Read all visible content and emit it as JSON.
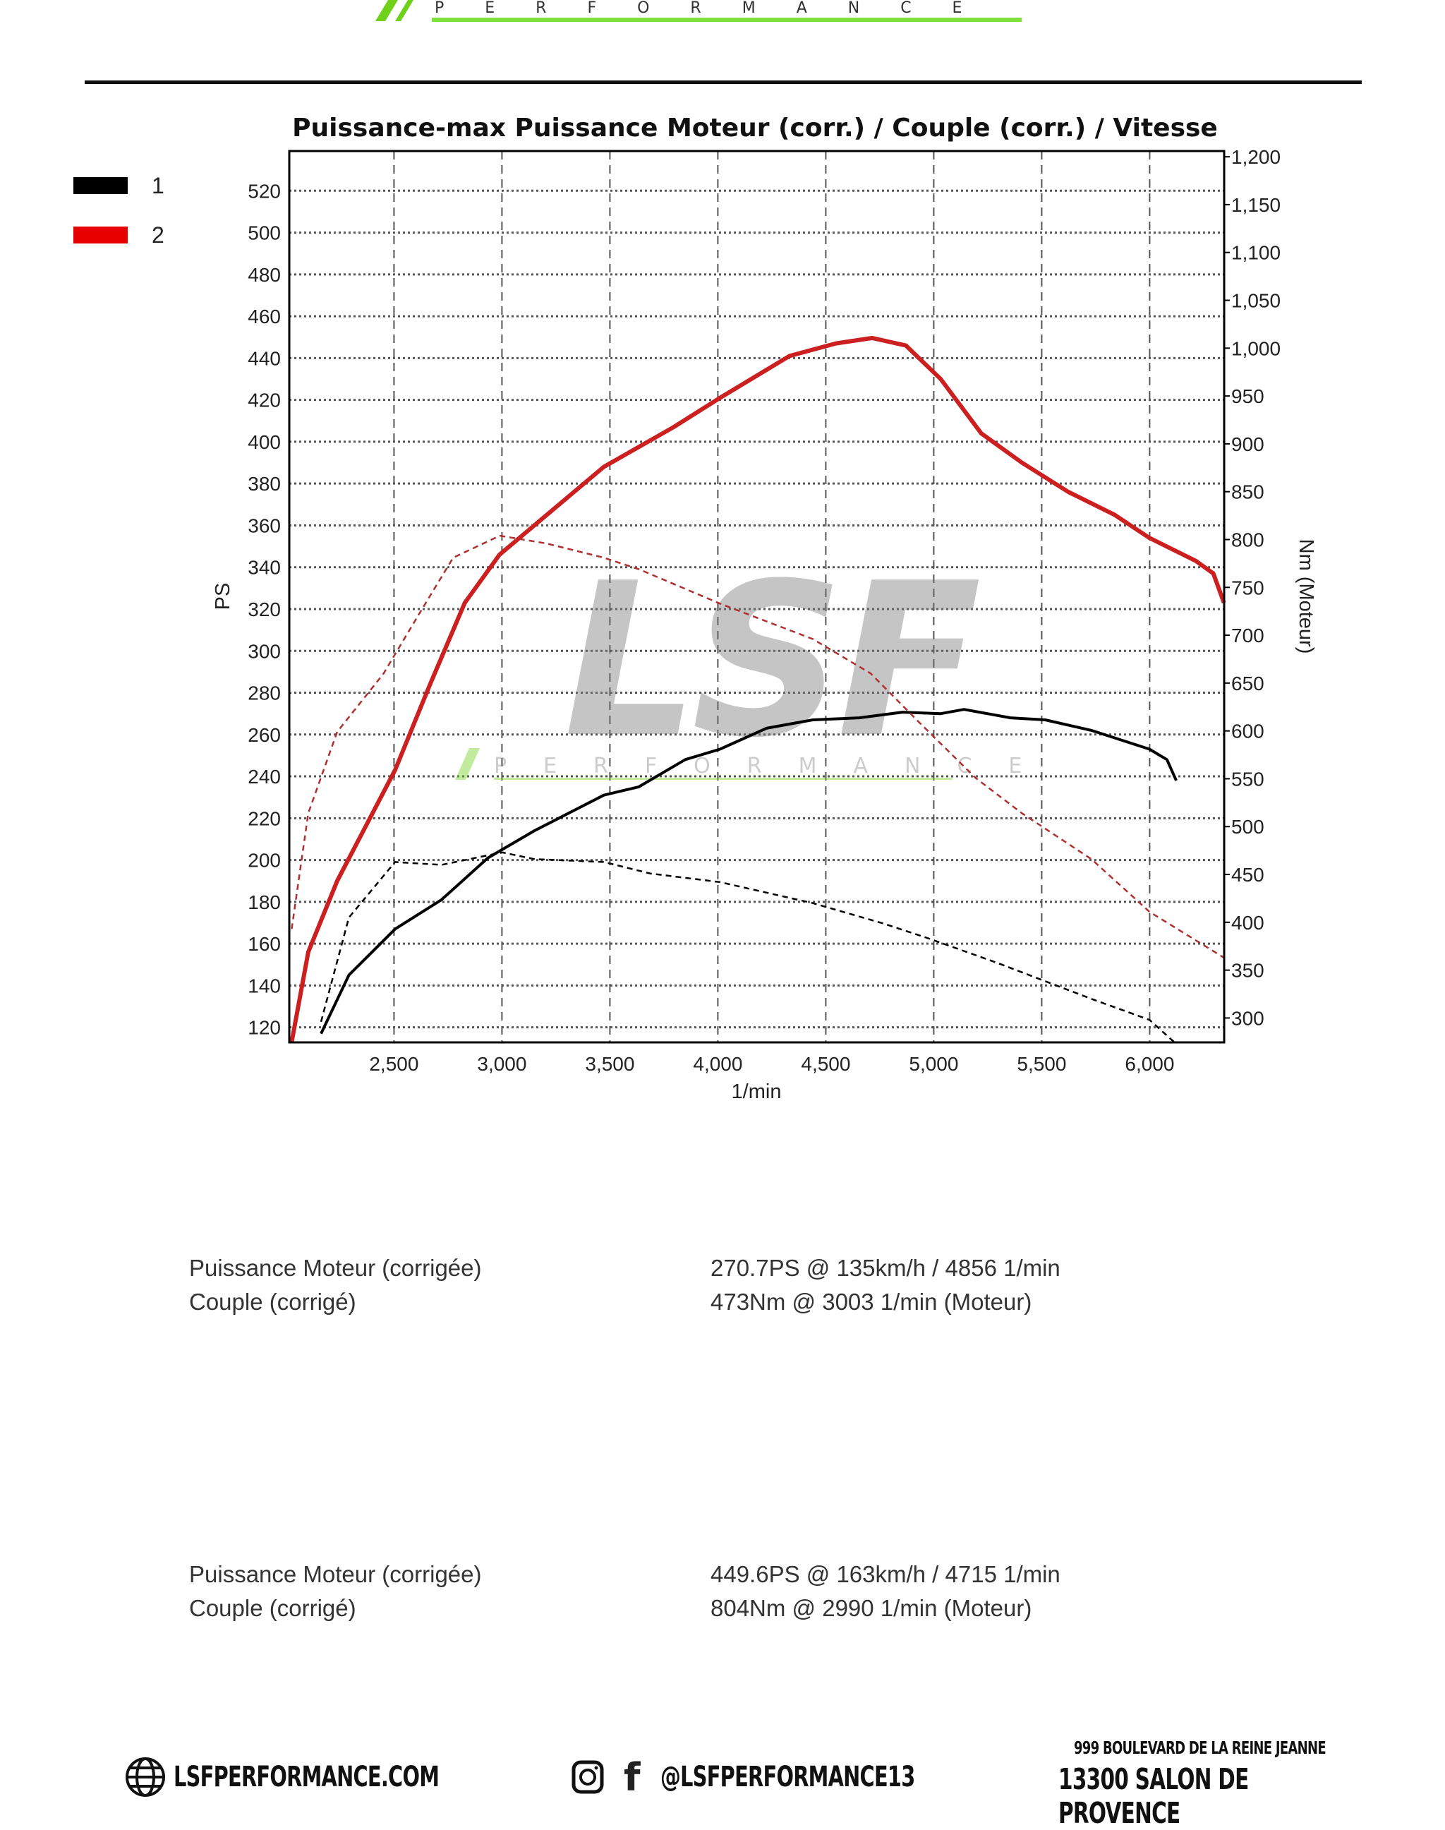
{
  "header": {
    "logo_text": "PERFORMANCE",
    "accent": "#6fd11a"
  },
  "legend": [
    {
      "label": "1",
      "color": "#000000"
    },
    {
      "label": "2",
      "color": "#e60000"
    }
  ],
  "watermark": {
    "main": "LSF",
    "sub": "PERFORMANCE"
  },
  "chart_data": {
    "type": "line",
    "title": "Puissance-max Puissance Moteur (corr.) / Couple (corr.) / Vitesse",
    "xlabel": "1/min",
    "ylabel": "PS",
    "y2label": "Nm (Moteur)",
    "xlim": [
      2015,
      6345
    ],
    "ylim": [
      112.8,
      539
    ],
    "y2lim": [
      274.5,
      1206
    ],
    "xticks": [
      2500,
      3000,
      3500,
      4000,
      4500,
      5000,
      5500,
      6000
    ],
    "xtick_labels": [
      "2,500",
      "3,000",
      "3,500",
      "4,000",
      "4,500",
      "5,000",
      "5,500",
      "6,000"
    ],
    "yticks": [
      120,
      140,
      160,
      180,
      200,
      220,
      240,
      260,
      280,
      300,
      320,
      340,
      360,
      380,
      400,
      420,
      440,
      460,
      480,
      500,
      520
    ],
    "y2ticks": [
      300,
      350,
      400,
      450,
      500,
      550,
      600,
      650,
      700,
      750,
      800,
      850,
      900,
      950,
      1000,
      1050,
      1100,
      1150,
      1200
    ],
    "y2tick_labels": [
      "300",
      "350",
      "400",
      "450",
      "500",
      "550",
      "600",
      "650",
      "700",
      "750",
      "800",
      "850",
      "900",
      "950",
      "1,000",
      "1,050",
      "1,100",
      "1,150",
      "1,200"
    ],
    "grid": true,
    "legend_position": "left",
    "series": [
      {
        "name": "1",
        "quantity": "power",
        "axis": "left",
        "color": "#000000",
        "style": "solid",
        "x": [
          2162,
          2291,
          2505,
          2720,
          2935,
          3150,
          3472,
          3634,
          3849,
          4010,
          4225,
          4440,
          4655,
          4856,
          5032,
          5140,
          5355,
          5516,
          5730,
          5999,
          6080,
          6123
        ],
        "y": [
          117,
          145,
          167,
          181,
          201,
          214,
          231,
          235,
          248,
          253,
          263,
          267,
          268,
          270.7,
          270,
          272,
          268,
          267,
          262,
          253,
          248,
          238
        ]
      },
      {
        "name": "2",
        "quantity": "power",
        "axis": "left",
        "color": "#cc1f1f",
        "style": "solid",
        "x": [
          2026,
          2103,
          2237,
          2505,
          2667,
          2828,
          2989,
          3150,
          3472,
          3795,
          4010,
          4332,
          4547,
          4715,
          4871,
          5032,
          5220,
          5408,
          5623,
          5838,
          5999,
          6214,
          6295,
          6344
        ],
        "y": [
          113,
          156,
          190,
          243,
          284,
          323,
          346,
          360,
          388,
          407,
          421,
          441,
          447,
          449.6,
          446,
          430,
          404,
          390,
          376,
          365,
          354,
          343,
          337,
          323
        ]
      },
      {
        "name": "1",
        "quantity": "torque",
        "axis": "right",
        "color": "#000000",
        "style": "dashed",
        "x": [
          2162,
          2291,
          2505,
          2720,
          2935,
          3003,
          3150,
          3472,
          3687,
          4010,
          4440,
          4763,
          4978,
          5301,
          5730,
          5999,
          6118
        ],
        "y": [
          296,
          405,
          463,
          460,
          470,
          473,
          466,
          463,
          451,
          442,
          420,
          399,
          383,
          357,
          320,
          298,
          274
        ]
      },
      {
        "name": "2",
        "quantity": "torque",
        "axis": "right",
        "color": "#b03030",
        "style": "dashed",
        "x": [
          2026,
          2103,
          2237,
          2452,
          2613,
          2774,
          2990,
          3204,
          3472,
          3634,
          4010,
          4440,
          4708,
          4923,
          5193,
          5408,
          5730,
          5999,
          6344
        ],
        "y": [
          393,
          514,
          599,
          660,
          721,
          781,
          804,
          796,
          781,
          769,
          733,
          696,
          660,
          611,
          551,
          514,
          466,
          411,
          363
        ]
      }
    ]
  },
  "results": [
    {
      "power_label": "Puissance Moteur (corrigée)",
      "power_value": "270.7PS @ 135km/h / 4856 1/min",
      "torque_label": "Couple (corrigé)",
      "torque_value": "473Nm @ 3003 1/min (Moteur)"
    },
    {
      "power_label": "Puissance Moteur (corrigée)",
      "power_value": "449.6PS @ 163km/h / 4715 1/min",
      "torque_label": "Couple (corrigé)",
      "torque_value": "804Nm @ 2990 1/min (Moteur)"
    }
  ],
  "footer": {
    "website": "LSFPERFORMANCE.COM",
    "social": "@LSFPERFORMANCE13",
    "address_line1": "999 BOULEVARD DE LA REINE JEANNE",
    "address_line2": "13300 SALON DE PROVENCE"
  }
}
